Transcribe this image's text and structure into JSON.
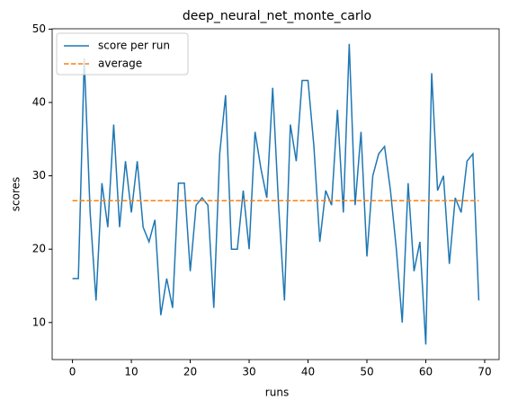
{
  "chart_data": {
    "type": "line",
    "title": "deep_neural_net_monte_carlo",
    "x_label": "runs",
    "y_label": "scores",
    "x": [
      0,
      1,
      2,
      3,
      4,
      5,
      6,
      7,
      8,
      9,
      10,
      11,
      12,
      13,
      14,
      15,
      16,
      17,
      18,
      19,
      20,
      21,
      22,
      23,
      24,
      25,
      26,
      27,
      28,
      29,
      30,
      31,
      32,
      33,
      34,
      35,
      36,
      37,
      38,
      39,
      40,
      41,
      42,
      43,
      44,
      45,
      46,
      47,
      48,
      49,
      50,
      51,
      52,
      53,
      54,
      55,
      56,
      57,
      58,
      59,
      60,
      61,
      62,
      63,
      64,
      65,
      66,
      67,
      68,
      69
    ],
    "series": [
      {
        "name": "score per run",
        "color": "#1f77b4",
        "dash": false,
        "values": [
          16,
          16,
          46,
          25,
          13,
          29,
          23,
          37,
          23,
          32,
          25,
          32,
          23,
          21,
          24,
          11,
          16,
          12,
          29,
          29,
          17,
          26,
          27,
          26,
          12,
          33,
          41,
          20,
          20,
          28,
          20,
          36,
          31,
          27,
          42,
          26,
          13,
          37,
          32,
          43,
          43,
          34,
          21,
          28,
          26,
          39,
          25,
          48,
          26,
          36,
          19,
          30,
          33,
          34,
          28,
          20,
          10,
          29,
          17,
          21,
          7,
          44,
          28,
          30,
          18,
          27,
          25,
          32,
          33,
          13
        ]
      },
      {
        "name": "average",
        "color": "#ff7f0e",
        "dash": true,
        "values": [
          26.61,
          26.61,
          26.61,
          26.61,
          26.61,
          26.61,
          26.61,
          26.61,
          26.61,
          26.61,
          26.61,
          26.61,
          26.61,
          26.61,
          26.61,
          26.61,
          26.61,
          26.61,
          26.61,
          26.61,
          26.61,
          26.61,
          26.61,
          26.61,
          26.61,
          26.61,
          26.61,
          26.61,
          26.61,
          26.61,
          26.61,
          26.61,
          26.61,
          26.61,
          26.61,
          26.61,
          26.61,
          26.61,
          26.61,
          26.61,
          26.61,
          26.61,
          26.61,
          26.61,
          26.61,
          26.61,
          26.61,
          26.61,
          26.61,
          26.61,
          26.61,
          26.61,
          26.61,
          26.61,
          26.61,
          26.61,
          26.61,
          26.61,
          26.61,
          26.61,
          26.61,
          26.61,
          26.61,
          26.61,
          26.61,
          26.61,
          26.61,
          26.61,
          26.61,
          26.61
        ]
      }
    ],
    "xlim": [
      -3.45,
      72.45
    ],
    "xticks": [
      0,
      10,
      20,
      30,
      40,
      50,
      60,
      70
    ],
    "ylim": [
      4.95,
      50.05
    ],
    "yticks": [
      10,
      20,
      30,
      40,
      50
    ],
    "legend": "upper left"
  }
}
